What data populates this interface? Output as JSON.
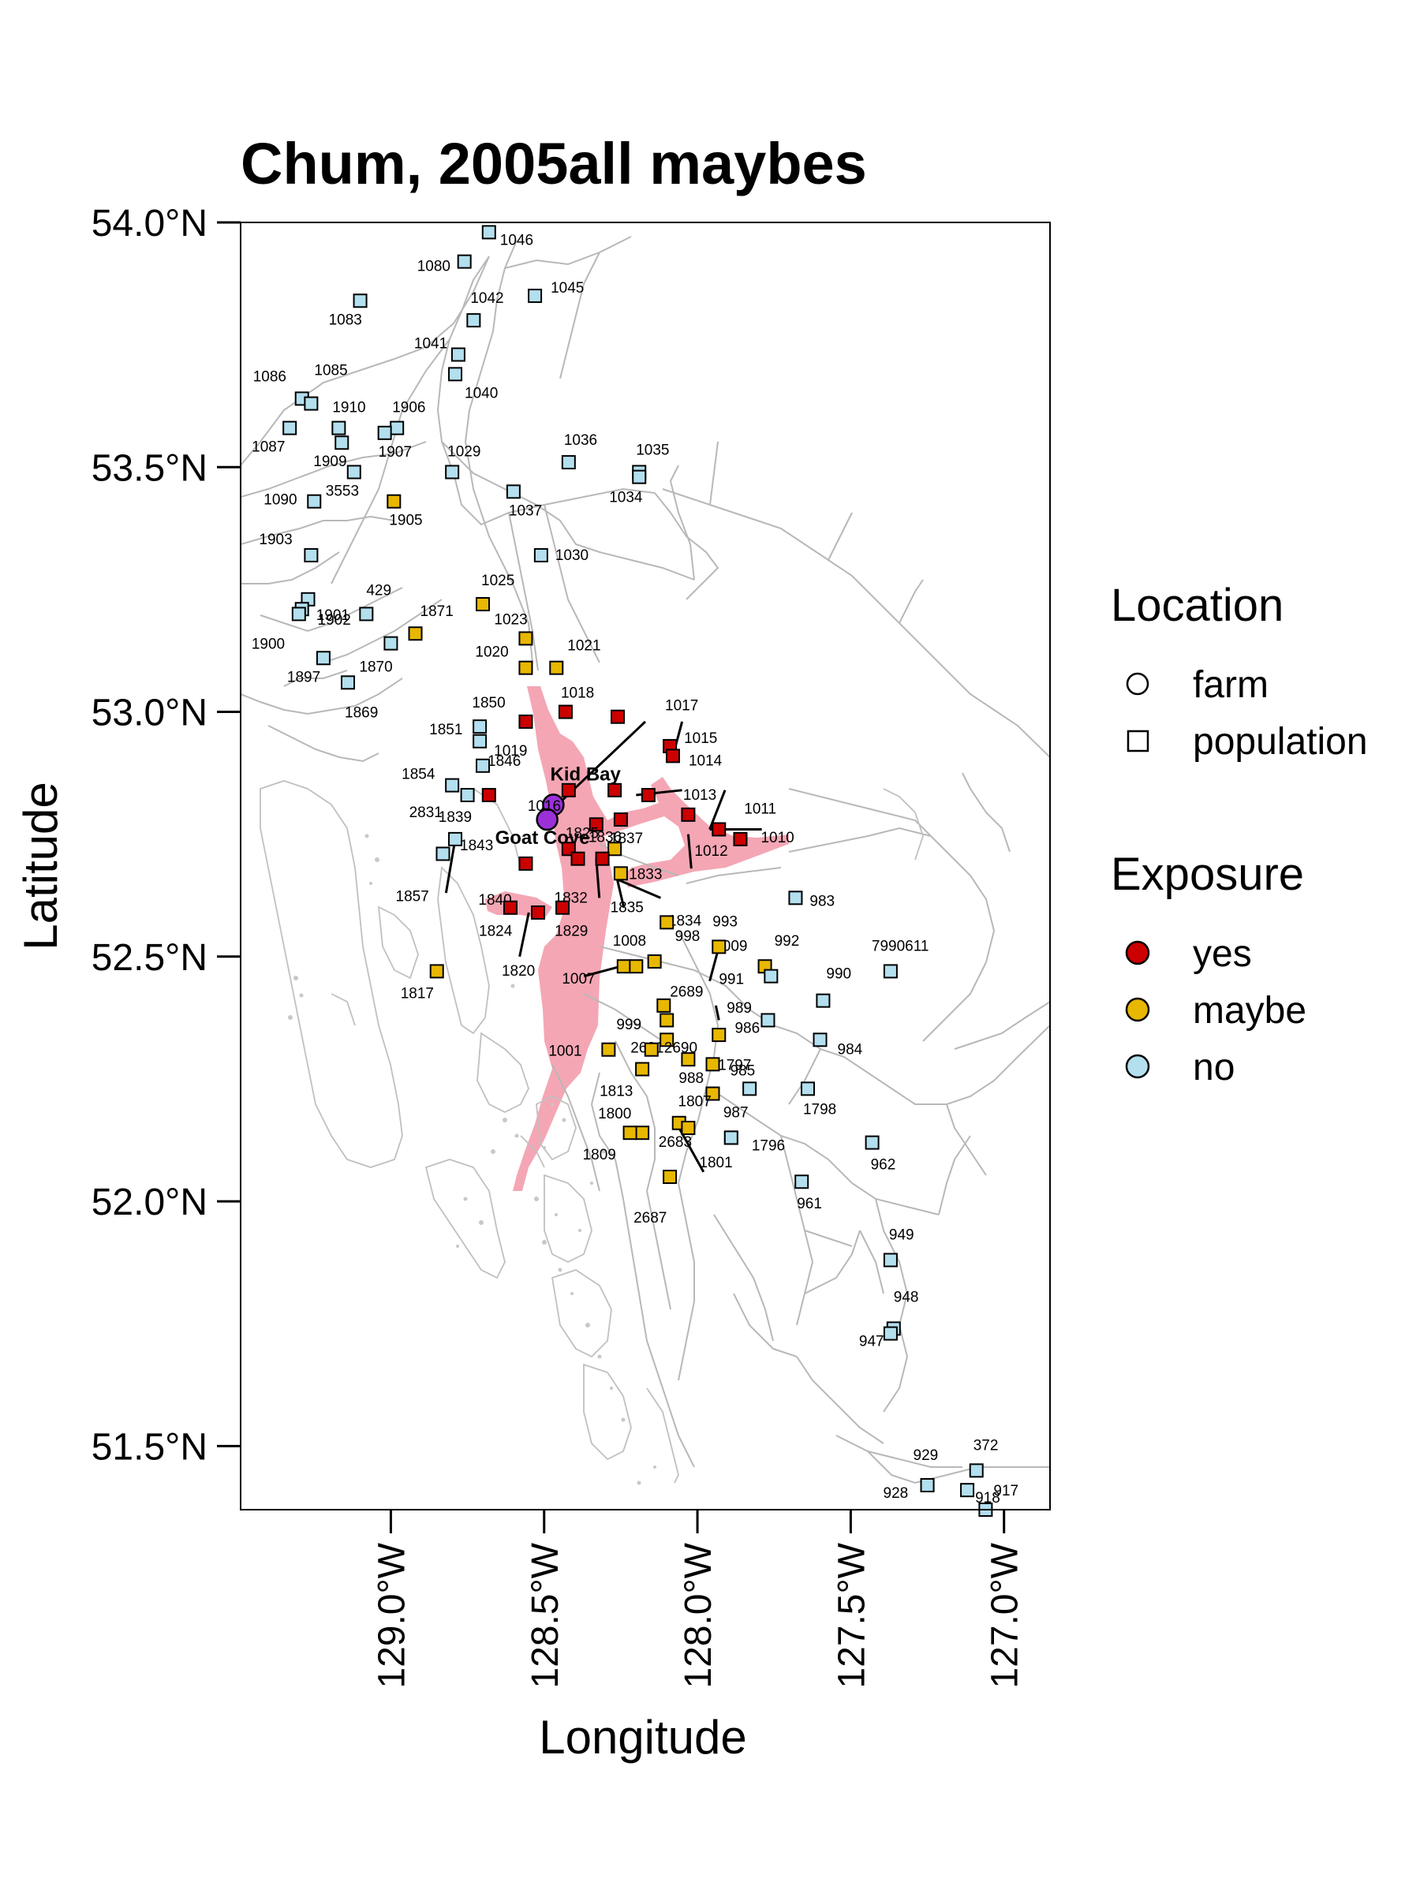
{
  "title": "Chum, 2005all maybes",
  "x_axis": {
    "label": "Longitude",
    "ticks": [
      {
        "value": -129.0,
        "label": "129.0°W"
      },
      {
        "value": -128.5,
        "label": "128.5°W"
      },
      {
        "value": -128.0,
        "label": "128.0°W"
      },
      {
        "value": -127.5,
        "label": "127.5°W"
      },
      {
        "value": -127.0,
        "label": "127.0°W"
      }
    ],
    "range": [
      -129.49,
      -126.85
    ]
  },
  "y_axis": {
    "label": "Latitude",
    "ticks": [
      {
        "value": 54.0,
        "label": "54.0°N"
      },
      {
        "value": 53.5,
        "label": "53.5°N"
      },
      {
        "value": 53.0,
        "label": "53.0°N"
      },
      {
        "value": 52.5,
        "label": "52.5°N"
      },
      {
        "value": 52.0,
        "label": "52.0°N"
      },
      {
        "value": 51.5,
        "label": "51.5°N"
      }
    ],
    "range": [
      51.37,
      54.0
    ]
  },
  "legend": {
    "location_title": "Location",
    "location_items": [
      {
        "label": "farm",
        "shape": "circle"
      },
      {
        "label": "population",
        "shape": "square"
      }
    ],
    "exposure_title": "Exposure",
    "exposure_items": [
      {
        "label": "yes",
        "color": "#cc0000"
      },
      {
        "label": "maybe",
        "color": "#e8b700"
      },
      {
        "label": "no",
        "color": "#b3dfee"
      }
    ]
  },
  "colors": {
    "yes": "#cc0000",
    "maybe": "#e8b700",
    "no": "#b3dfee",
    "farm": "#9b30d9",
    "coast": "#b8b8b8",
    "exposure_zone": "#f4a6b4"
  },
  "farms": [
    {
      "name": "Kid Bay",
      "lon": -128.47,
      "lat": 52.81
    },
    {
      "name": "Goat Cove",
      "lon": -128.49,
      "lat": 52.78
    }
  ],
  "chart_data": {
    "type": "scatter",
    "title": "Chum, 2005all maybes",
    "xlabel": "Longitude",
    "ylabel": "Latitude",
    "xlim": [
      -129.49,
      -126.85
    ],
    "ylim": [
      51.37,
      54.0
    ],
    "points": [
      {
        "label": "1046",
        "lon": -128.68,
        "lat": 53.98,
        "exposure": "no"
      },
      {
        "label": "1080",
        "lon": -128.76,
        "lat": 53.92,
        "exposure": "no"
      },
      {
        "label": "1045",
        "lon": -128.53,
        "lat": 53.85,
        "exposure": "no"
      },
      {
        "label": "1042",
        "lon": -128.73,
        "lat": 53.8,
        "exposure": "no"
      },
      {
        "label": "1083",
        "lon": -129.1,
        "lat": 53.84,
        "exposure": "no"
      },
      {
        "label": "1041",
        "lon": -128.78,
        "lat": 53.73,
        "exposure": "no"
      },
      {
        "label": "1040",
        "lon": -128.79,
        "lat": 53.69,
        "exposure": "no"
      },
      {
        "label": "1086",
        "lon": -129.29,
        "lat": 53.64,
        "exposure": "no"
      },
      {
        "label": "1085",
        "lon": -129.26,
        "lat": 53.63,
        "exposure": "no"
      },
      {
        "label": "1910",
        "lon": -129.17,
        "lat": 53.58,
        "exposure": "no"
      },
      {
        "label": "1906",
        "lon": -128.98,
        "lat": 53.58,
        "exposure": "no"
      },
      {
        "label": "1087",
        "lon": -129.33,
        "lat": 53.58,
        "exposure": "no"
      },
      {
        "label": "1907",
        "lon": -129.02,
        "lat": 53.57,
        "exposure": "no"
      },
      {
        "label": "1909",
        "lon": -129.16,
        "lat": 53.55,
        "exposure": "no"
      },
      {
        "label": "1029",
        "lon": -128.8,
        "lat": 53.49,
        "exposure": "no"
      },
      {
        "label": "1036",
        "lon": -128.42,
        "lat": 53.51,
        "exposure": "no"
      },
      {
        "label": "1035",
        "lon": -128.19,
        "lat": 53.49,
        "exposure": "no"
      },
      {
        "label": "1034",
        "lon": -128.19,
        "lat": 53.48,
        "exposure": "no"
      },
      {
        "label": "3553",
        "lon": -129.12,
        "lat": 53.49,
        "exposure": "no"
      },
      {
        "label": "1090",
        "lon": -129.25,
        "lat": 53.43,
        "exposure": "no"
      },
      {
        "label": "1037",
        "lon": -128.6,
        "lat": 53.45,
        "exposure": "no"
      },
      {
        "label": "1905",
        "lon": -128.99,
        "lat": 53.43,
        "exposure": "maybe"
      },
      {
        "label": "1030",
        "lon": -128.51,
        "lat": 53.32,
        "exposure": "no"
      },
      {
        "label": "1903",
        "lon": -129.26,
        "lat": 53.32,
        "exposure": "no"
      },
      {
        "label": "1902",
        "lon": -129.27,
        "lat": 53.23,
        "exposure": "no"
      },
      {
        "label": "1025",
        "lon": -128.7,
        "lat": 53.22,
        "exposure": "maybe"
      },
      {
        "label": "429",
        "lon": -129.08,
        "lat": 53.2,
        "exposure": "no"
      },
      {
        "label": "1901",
        "lon": -129.29,
        "lat": 53.21,
        "exposure": "no"
      },
      {
        "label": "1900",
        "lon": -129.3,
        "lat": 53.2,
        "exposure": "no"
      },
      {
        "label": "1871",
        "lon": -128.92,
        "lat": 53.16,
        "exposure": "maybe"
      },
      {
        "label": "1023",
        "lon": -128.56,
        "lat": 53.15,
        "exposure": "maybe"
      },
      {
        "label": "1870",
        "lon": -129.0,
        "lat": 53.14,
        "exposure": "no"
      },
      {
        "label": "1021",
        "lon": -128.46,
        "lat": 53.09,
        "exposure": "maybe"
      },
      {
        "label": "1020",
        "lon": -128.56,
        "lat": 53.09,
        "exposure": "maybe"
      },
      {
        "label": "1897",
        "lon": -129.22,
        "lat": 53.11,
        "exposure": "no"
      },
      {
        "label": "1869",
        "lon": -129.14,
        "lat": 53.06,
        "exposure": "no"
      },
      {
        "label": "1018",
        "lon": -128.43,
        "lat": 53.0,
        "exposure": "yes"
      },
      {
        "label": "1850",
        "lon": -128.56,
        "lat": 52.98,
        "exposure": "yes"
      },
      {
        "label": "1851",
        "lon": -128.71,
        "lat": 52.97,
        "exposure": "no"
      },
      {
        "label": "1019",
        "lon": -128.71,
        "lat": 52.94,
        "exposure": "no"
      },
      {
        "label": "1015",
        "lon": -128.09,
        "lat": 52.93,
        "exposure": "yes"
      },
      {
        "label": "1014",
        "lon": -128.08,
        "lat": 52.91,
        "exposure": "yes"
      },
      {
        "label": "1017",
        "lon": -128.26,
        "lat": 52.99,
        "exposure": "yes"
      },
      {
        "label": "1016",
        "lon": -128.42,
        "lat": 52.84,
        "exposure": "yes"
      },
      {
        "label": "1854",
        "lon": -128.8,
        "lat": 52.85,
        "exposure": "no"
      },
      {
        "label": "1846",
        "lon": -128.7,
        "lat": 52.89,
        "exposure": "no"
      },
      {
        "label": "2831",
        "lon": -128.75,
        "lat": 52.83,
        "exposure": "no"
      },
      {
        "label": "1836",
        "lon": -128.33,
        "lat": 52.77,
        "exposure": "yes"
      },
      {
        "label": "1013",
        "lon": -128.16,
        "lat": 52.83,
        "exposure": "yes"
      },
      {
        "label": "1838",
        "lon": -128.27,
        "lat": 52.84,
        "exposure": "yes"
      },
      {
        "label": "1011",
        "lon": -127.93,
        "lat": 52.76,
        "exposure": "yes"
      },
      {
        "label": "1010",
        "lon": -127.86,
        "lat": 52.74,
        "exposure": "yes"
      },
      {
        "label": "1839",
        "lon": -128.68,
        "lat": 52.83,
        "exposure": "yes"
      },
      {
        "label": "1837",
        "lon": -128.25,
        "lat": 52.78,
        "exposure": "yes"
      },
      {
        "label": "1012",
        "lon": -128.03,
        "lat": 52.79,
        "exposure": "yes"
      },
      {
        "label": "1843",
        "lon": -128.79,
        "lat": 52.74,
        "exposure": "no"
      },
      {
        "label": "1825",
        "lon": -128.42,
        "lat": 52.72,
        "exposure": "yes"
      },
      {
        "label": "1857",
        "lon": -128.83,
        "lat": 52.71,
        "exposure": "no"
      },
      {
        "label": "1833",
        "lon": -128.27,
        "lat": 52.72,
        "exposure": "maybe"
      },
      {
        "label": "1832",
        "lon": -128.39,
        "lat": 52.7,
        "exposure": "yes"
      },
      {
        "label": "1835",
        "lon": -128.31,
        "lat": 52.7,
        "exposure": "yes"
      },
      {
        "label": "1834",
        "lon": -128.25,
        "lat": 52.67,
        "exposure": "maybe"
      },
      {
        "label": "1840",
        "lon": -128.56,
        "lat": 52.69,
        "exposure": "yes"
      },
      {
        "label": "1824",
        "lon": -128.61,
        "lat": 52.6,
        "exposure": "yes"
      },
      {
        "label": "1829",
        "lon": -128.44,
        "lat": 52.6,
        "exposure": "yes"
      },
      {
        "label": "1820",
        "lon": -128.52,
        "lat": 52.59,
        "exposure": "yes"
      },
      {
        "label": "1009",
        "lon": -128.1,
        "lat": 52.57,
        "exposure": "maybe"
      },
      {
        "label": "983",
        "lon": -127.68,
        "lat": 52.62,
        "exposure": "no"
      },
      {
        "label": "993",
        "lon": -127.93,
        "lat": 52.52,
        "exposure": "maybe"
      },
      {
        "label": "992",
        "lon": -127.78,
        "lat": 52.48,
        "exposure": "maybe"
      },
      {
        "label": "998",
        "lon": -128.14,
        "lat": 52.49,
        "exposure": "maybe"
      },
      {
        "label": "1008",
        "lon": -128.24,
        "lat": 52.48,
        "exposure": "maybe"
      },
      {
        "label": "1007",
        "lon": -128.2,
        "lat": 52.48,
        "exposure": "maybe"
      },
      {
        "label": "991",
        "lon": -127.76,
        "lat": 52.46,
        "exposure": "no"
      },
      {
        "label": "7990611",
        "lon": -127.37,
        "lat": 52.47,
        "exposure": "no"
      },
      {
        "label": "1817",
        "lon": -128.85,
        "lat": 52.47,
        "exposure": "maybe"
      },
      {
        "label": "999",
        "lon": -128.11,
        "lat": 52.4,
        "exposure": "maybe"
      },
      {
        "label": "2689",
        "lon": -128.1,
        "lat": 52.37,
        "exposure": "maybe"
      },
      {
        "label": "990",
        "lon": -127.59,
        "lat": 52.41,
        "exposure": "no"
      },
      {
        "label": "989",
        "lon": -127.93,
        "lat": 52.34,
        "exposure": "maybe"
      },
      {
        "label": "984",
        "lon": -127.6,
        "lat": 52.33,
        "exposure": "no"
      },
      {
        "label": "986",
        "lon": -127.77,
        "lat": 52.37,
        "exposure": "no"
      },
      {
        "label": "2691",
        "lon": -128.1,
        "lat": 52.33,
        "exposure": "maybe"
      },
      {
        "label": "2690",
        "lon": -128.15,
        "lat": 52.31,
        "exposure": "maybe"
      },
      {
        "label": "1001",
        "lon": -128.29,
        "lat": 52.31,
        "exposure": "maybe"
      },
      {
        "label": "988",
        "lon": -128.03,
        "lat": 52.29,
        "exposure": "maybe"
      },
      {
        "label": "985",
        "lon": -127.95,
        "lat": 52.28,
        "exposure": "maybe"
      },
      {
        "label": "1797",
        "lon": -127.83,
        "lat": 52.23,
        "exposure": "no"
      },
      {
        "label": "1798",
        "lon": -127.64,
        "lat": 52.23,
        "exposure": "no"
      },
      {
        "label": "1813",
        "lon": -128.18,
        "lat": 52.27,
        "exposure": "maybe"
      },
      {
        "label": "1807",
        "lon": -127.95,
        "lat": 52.22,
        "exposure": "maybe"
      },
      {
        "label": "987",
        "lon": -127.89,
        "lat": 52.13,
        "exposure": "no"
      },
      {
        "label": "1800",
        "lon": -128.18,
        "lat": 52.14,
        "exposure": "maybe"
      },
      {
        "label": "1796",
        "lon": -127.89,
        "lat": 52.13,
        "exposure": "no"
      },
      {
        "label": "2683",
        "lon": -128.06,
        "lat": 52.16,
        "exposure": "maybe"
      },
      {
        "label": "1809",
        "lon": -128.22,
        "lat": 52.14,
        "exposure": "maybe"
      },
      {
        "label": "1801",
        "lon": -128.03,
        "lat": 52.15,
        "exposure": "maybe"
      },
      {
        "label": "962",
        "lon": -127.43,
        "lat": 52.12,
        "exposure": "no"
      },
      {
        "label": "2687",
        "lon": -128.09,
        "lat": 52.05,
        "exposure": "maybe"
      },
      {
        "label": "961",
        "lon": -127.66,
        "lat": 52.04,
        "exposure": "no"
      },
      {
        "label": "949",
        "lon": -127.37,
        "lat": 51.88,
        "exposure": "no"
      },
      {
        "label": "948",
        "lon": -127.36,
        "lat": 51.74,
        "exposure": "no"
      },
      {
        "label": "947",
        "lon": -127.37,
        "lat": 51.73,
        "exposure": "no"
      },
      {
        "label": "929",
        "lon": -127.25,
        "lat": 51.42,
        "exposure": "no"
      },
      {
        "label": "372",
        "lon": -127.09,
        "lat": 51.45,
        "exposure": "no"
      },
      {
        "label": "928",
        "lon": -127.25,
        "lat": 51.42,
        "exposure": "no"
      },
      {
        "label": "918",
        "lon": -127.12,
        "lat": 51.41,
        "exposure": "no"
      },
      {
        "label": "917",
        "lon": -127.06,
        "lat": 51.37,
        "exposure": "no"
      }
    ]
  }
}
